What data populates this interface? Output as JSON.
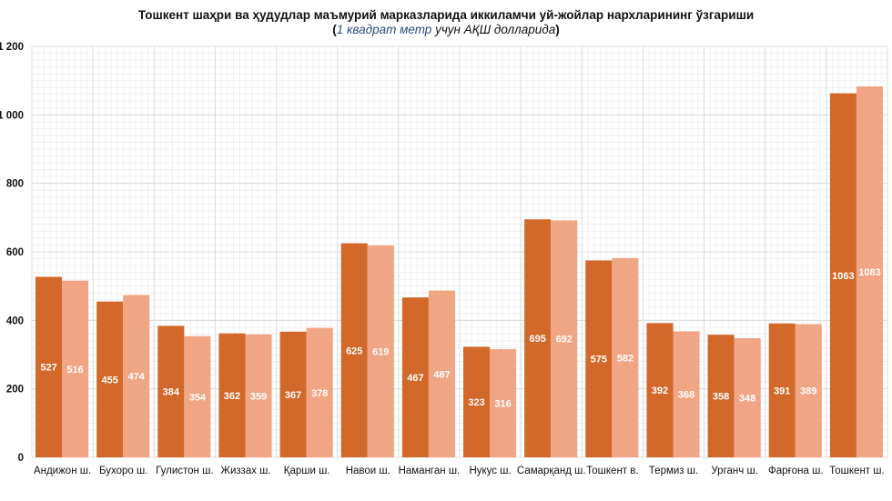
{
  "chart_data": {
    "type": "bar",
    "title": "Тошкент шаҳри ва ҳудудлар маъмурий марказларида иккиламчи уй-жойлар нархларининг ўзгариши",
    "subtitle": {
      "open": "(",
      "part1": "1 квадрат метр",
      "part2": " учун АҚШ долларида",
      "close": ")"
    },
    "xlabel": "",
    "ylabel": "",
    "ylim": [
      0,
      1200
    ],
    "yticks": [
      0,
      200,
      400,
      600,
      800,
      1000,
      1200
    ],
    "ytick_labels": [
      "0",
      "200",
      "400",
      "600",
      "800",
      "1 000",
      "1 200"
    ],
    "grid": true,
    "legend": "none",
    "categories": [
      "Андижон ш.",
      "Бухоро ш.",
      "Гулистон ш.",
      "Жиззах ш.",
      "Қарши ш.",
      "Навои ш.",
      "Наманган ш.",
      "Нукус ш.",
      "Самарқанд ш.",
      "Тошкент в.",
      "Термиз ш.",
      "Урганч ш.",
      "Фарғона ш.",
      "Тошкент ш."
    ],
    "series": [
      {
        "name": "series-1",
        "color": "#d2692a",
        "values": [
          527,
          455,
          384,
          362,
          367,
          625,
          467,
          323,
          695,
          575,
          392,
          358,
          391,
          1063
        ]
      },
      {
        "name": "series-2",
        "color": "#f0a585",
        "values": [
          516,
          474,
          354,
          359,
          378,
          619,
          487,
          316,
          692,
          582,
          368,
          348,
          389,
          1083
        ]
      }
    ]
  }
}
